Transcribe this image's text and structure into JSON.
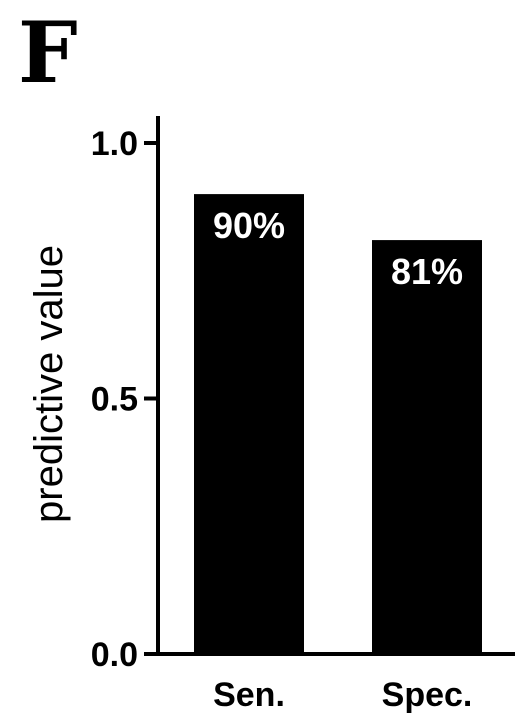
{
  "panel_label": "F",
  "colors": {
    "bar_fill": "#000000",
    "bar_label_text": "#ffffff",
    "axis": "#000000",
    "background": "#ffffff"
  },
  "chart_data": {
    "type": "bar",
    "categories": [
      "Sen.",
      "Spec."
    ],
    "values": [
      0.9,
      0.81
    ],
    "data_labels": [
      "90%",
      "81%"
    ],
    "ylabel": "predictive value",
    "xlabel": "",
    "ylim": [
      0,
      1
    ],
    "yticks": [
      0.0,
      0.5,
      1.0
    ],
    "ytick_labels": [
      "0.0",
      "0.5",
      "1.0"
    ],
    "grid": false,
    "legend": "none"
  }
}
